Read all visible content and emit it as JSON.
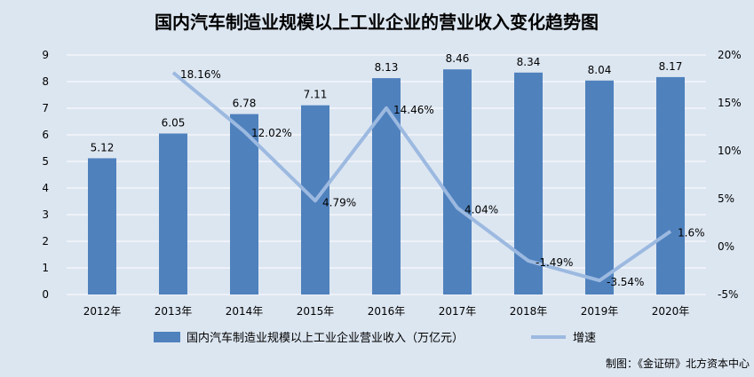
{
  "chart_data": {
    "type": "bar",
    "title": "国内汽车制造业规模以上工业企业的营业收入变化趋势图",
    "categories": [
      "2012年",
      "2013年",
      "2014年",
      "2015年",
      "2016年",
      "2017年",
      "2018年",
      "2019年",
      "2020年"
    ],
    "series": [
      {
        "name": "国内汽车制造业规模以上工业企业营业收入（万亿元）",
        "type": "bar",
        "axis": "left",
        "values": [
          5.12,
          6.05,
          6.78,
          7.11,
          8.13,
          8.46,
          8.34,
          8.04,
          8.17
        ],
        "labels": [
          "5.12",
          "6.05",
          "6.78",
          "7.11",
          "8.13",
          "8.46",
          "8.34",
          "8.04",
          "8.17"
        ],
        "color": "#4f81bd"
      },
      {
        "name": "增速",
        "type": "line",
        "axis": "right",
        "values": [
          null,
          18.16,
          12.02,
          4.79,
          14.46,
          4.04,
          -1.49,
          -3.54,
          1.6
        ],
        "labels": [
          "",
          "18.16%",
          "12.02%",
          "4.79%",
          "14.46%",
          "4.04%",
          "-1.49%",
          "-3.54%",
          "1.6%"
        ],
        "color": "#9cb9e0"
      }
    ],
    "y_left": {
      "min": 0,
      "max": 9,
      "ticks": [
        "0",
        "1",
        "2",
        "3",
        "4",
        "5",
        "6",
        "7",
        "8",
        "9"
      ]
    },
    "y_right": {
      "min": -5,
      "max": 20,
      "ticks": [
        "-5%",
        "0%",
        "5%",
        "10%",
        "15%",
        "20%"
      ]
    },
    "grid": true,
    "legend": "bottom"
  },
  "source": "制图：《金证研》北方资本中心"
}
